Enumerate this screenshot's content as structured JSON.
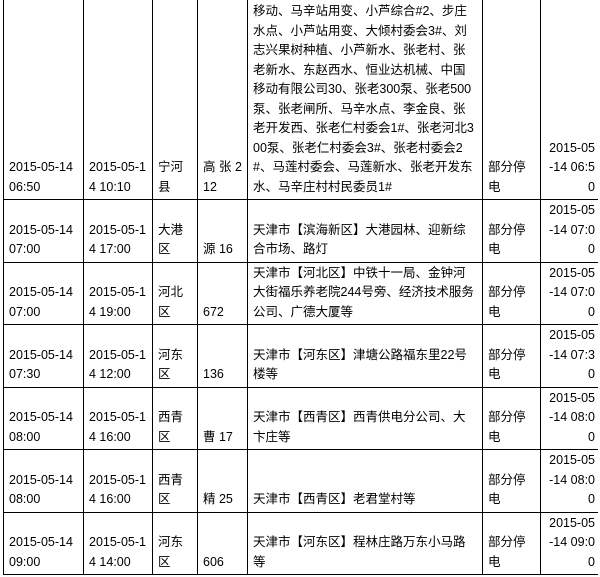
{
  "rows": [
    {
      "start": "2015-05-14 06:50",
      "end": "2015-05-14 10:10",
      "district": "宁河县",
      "line": "高 张 212",
      "area": "天津市【宁河县】柳树水点、马辛村、马联村、东赵村、常淀新水、马辛水站、东赵北水点、马联水点、姜庄水点、常淀村委会、农盈长毛兔50、姜庄泵点、姜庄新水、东赵机井、东赵新水、小芦北水、柳树村、小芦东水、大倾专业户、小芦村、小芦扬水站、马联移动、马辛站用变、小芦综合#2、步庄水点、小芦站用变、大倾村委会3#、刘志兴果树种植、小芦新水、张老村、张老新水、东赵西水、恒业达机械、中国移动有限公司30、张老300泵、张老500泵、张老闸所、马辛水点、李金良、张老开发西、张老仁村委会1#、张老河北300泵、张老仁村委会3#、张老村委会2#、马莲村委会、马莲新水、张老开发东水、马辛庄村村民委员1#",
      "type": "部分停电",
      "restore": "2015-05-14 06:50"
    },
    {
      "start": "2015-05-14 07:00",
      "end": "2015-05-14 17:00",
      "district": "大港区",
      "line": "源 16",
      "area": "天津市【滨海新区】大港园林、迎新综合市场、路灯",
      "type": "部分停电",
      "restore": "2015-05-14 07:00"
    },
    {
      "start": "2015-05-14 07:00",
      "end": "2015-05-14 19:00",
      "district": "河北区",
      "line": "672",
      "area": "天津市【河北区】中铁十一局、金钟河大街福乐养老院244号旁、经济技术服务公司、广德大厦等",
      "type": "部分停电",
      "restore": "2015-05-14 07:00"
    },
    {
      "start": "2015-05-14 07:30",
      "end": "2015-05-14 12:00",
      "district": "河东区",
      "line": "136",
      "area": "天津市【河东区】津塘公路福东里22号楼等",
      "type": "部分停电",
      "restore": "2015-05-14 07:30"
    },
    {
      "start": "2015-05-14 08:00",
      "end": "2015-05-14 16:00",
      "district": "西青区",
      "line": "曹 17",
      "area": "天津市【西青区】西青供电分公司、大卞庄等",
      "type": "部分停电",
      "restore": "2015-05-14 08:00"
    },
    {
      "start": "2015-05-14 08:00",
      "end": "2015-05-14 16:00",
      "district": "西青区",
      "line": "精 25",
      "area": "天津市【西青区】老君堂村等",
      "type": "部分停电",
      "restore": "2015-05-14 08:00"
    },
    {
      "start": "2015-05-14 09:00",
      "end": "2015-05-14 14:00",
      "district": "河东区",
      "line": "606",
      "area": "天津市【河东区】程林庄路万东小马路等",
      "type": "部分停电",
      "restore": "2015-05-14 09:00"
    }
  ]
}
